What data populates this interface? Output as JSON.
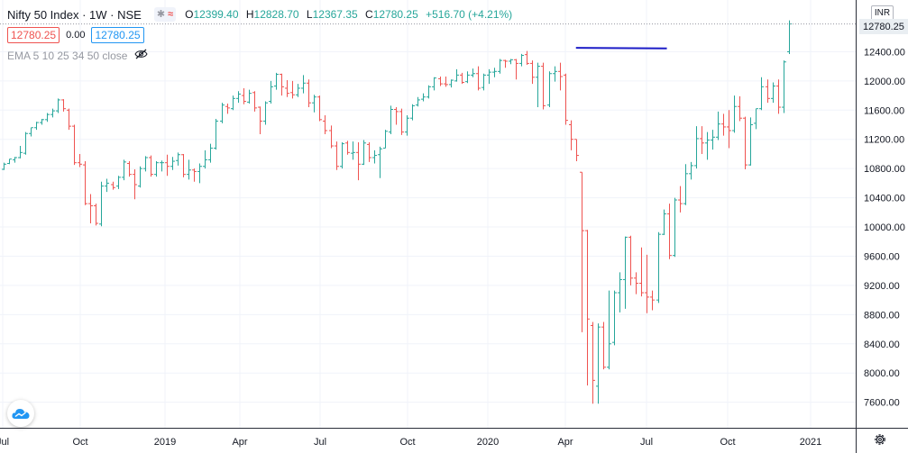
{
  "legend": {
    "symbol": "Nifty 50 Index · 1W · NSE",
    "open_label": "O",
    "open": "12399.40",
    "high_label": "H",
    "high": "12828.70",
    "low_label": "L",
    "low": "12367.35",
    "close_label": "C",
    "close": "12780.25",
    "change": "+516.70 (+4.21%)",
    "bid": "12780.25",
    "spread": "0.00",
    "ask": "12780.25",
    "indicator": "EMA 5 10 25 34 50 close"
  },
  "price_axis": {
    "currency": "INR",
    "last_price": "12780.25"
  },
  "colors": {
    "up": "#26a69a",
    "down": "#ef5350",
    "trendline": "#1c1cc7",
    "grid": "#f0f3fa",
    "axis_text": "#131722",
    "price_tag_bg": "#e9eef2",
    "last_price_line": "#9598a1"
  },
  "icons": {
    "visibility": "eye-crossed-icon",
    "logo": "cloud-logo-icon",
    "settings": "gear-icon"
  },
  "chart_data": {
    "type": "ohlc",
    "timeframe": "1W",
    "ylim": [
      7300,
      12960
    ],
    "y_ticks": [
      7600,
      8000,
      8400,
      8800,
      9200,
      9600,
      10000,
      10400,
      10800,
      11200,
      11600,
      12000,
      12400
    ],
    "y_tick_labels": [
      "7600.00",
      "8000.00",
      "8400.00",
      "8800.00",
      "9200.00",
      "9600.00",
      "10000.00",
      "10400.00",
      "10800.00",
      "11200.00",
      "11600.00",
      "12000.00",
      "12400.00"
    ],
    "x_labels": [
      "Jul",
      "Oct",
      "2019",
      "Apr",
      "Jul",
      "Oct",
      "2020",
      "Apr",
      "Jul",
      "Oct",
      "2021"
    ],
    "trendline": {
      "start": [
        105,
        12453
      ],
      "end": [
        121,
        12445
      ]
    },
    "last_price": 12780.25,
    "bars": [
      {
        "o": 10790,
        "h": 10880,
        "l": 10780,
        "c": 10860
      },
      {
        "o": 10870,
        "h": 10930,
        "l": 10860,
        "c": 10930
      },
      {
        "o": 10920,
        "h": 10960,
        "l": 10880,
        "c": 10950
      },
      {
        "o": 10950,
        "h": 11110,
        "l": 10940,
        "c": 11020
      },
      {
        "o": 11010,
        "h": 11300,
        "l": 10990,
        "c": 11280
      },
      {
        "o": 11280,
        "h": 11360,
        "l": 11240,
        "c": 11360
      },
      {
        "o": 11360,
        "h": 11440,
        "l": 11330,
        "c": 11430
      },
      {
        "o": 11430,
        "h": 11480,
        "l": 11400,
        "c": 11470
      },
      {
        "o": 11470,
        "h": 11560,
        "l": 11440,
        "c": 11540
      },
      {
        "o": 11540,
        "h": 11620,
        "l": 11500,
        "c": 11590
      },
      {
        "o": 11590,
        "h": 11760,
        "l": 11560,
        "c": 11740
      },
      {
        "o": 11740,
        "h": 11750,
        "l": 11580,
        "c": 11620
      },
      {
        "o": 11600,
        "h": 11620,
        "l": 11330,
        "c": 11380
      },
      {
        "o": 11380,
        "h": 11400,
        "l": 10850,
        "c": 10880
      },
      {
        "o": 10880,
        "h": 11000,
        "l": 10820,
        "c": 10860
      },
      {
        "o": 10850,
        "h": 10900,
        "l": 10300,
        "c": 10320
      },
      {
        "o": 10320,
        "h": 10450,
        "l": 10050,
        "c": 10290
      },
      {
        "o": 10290,
        "h": 10320,
        "l": 10020,
        "c": 10050
      },
      {
        "o": 10040,
        "h": 10620,
        "l": 10010,
        "c": 10560
      },
      {
        "o": 10560,
        "h": 10660,
        "l": 10480,
        "c": 10600
      },
      {
        "o": 10580,
        "h": 10620,
        "l": 10510,
        "c": 10540
      },
      {
        "o": 10560,
        "h": 10700,
        "l": 10520,
        "c": 10680
      },
      {
        "o": 10680,
        "h": 10920,
        "l": 10640,
        "c": 10890
      },
      {
        "o": 10870,
        "h": 10900,
        "l": 10690,
        "c": 10720
      },
      {
        "o": 10720,
        "h": 10790,
        "l": 10380,
        "c": 10580
      },
      {
        "o": 10560,
        "h": 10830,
        "l": 10540,
        "c": 10800
      },
      {
        "o": 10800,
        "h": 10970,
        "l": 10760,
        "c": 10950
      },
      {
        "o": 10950,
        "h": 10980,
        "l": 10690,
        "c": 10720
      },
      {
        "o": 10720,
        "h": 10900,
        "l": 10690,
        "c": 10880
      },
      {
        "o": 10880,
        "h": 10910,
        "l": 10760,
        "c": 10880
      },
      {
        "o": 10880,
        "h": 10990,
        "l": 10700,
        "c": 10830
      },
      {
        "o": 10830,
        "h": 10960,
        "l": 10780,
        "c": 10900
      },
      {
        "o": 10910,
        "h": 11020,
        "l": 10840,
        "c": 10990
      },
      {
        "o": 10990,
        "h": 11000,
        "l": 10680,
        "c": 10720
      },
      {
        "o": 10720,
        "h": 10920,
        "l": 10650,
        "c": 10780
      },
      {
        "o": 10780,
        "h": 10800,
        "l": 10620,
        "c": 10760
      },
      {
        "o": 10760,
        "h": 10870,
        "l": 10600,
        "c": 10830
      },
      {
        "o": 10830,
        "h": 11050,
        "l": 10800,
        "c": 10920
      },
      {
        "o": 10920,
        "h": 11140,
        "l": 10880,
        "c": 11080
      },
      {
        "o": 11080,
        "h": 11480,
        "l": 11060,
        "c": 11450
      },
      {
        "o": 11450,
        "h": 11700,
        "l": 11420,
        "c": 11670
      },
      {
        "o": 11650,
        "h": 11690,
        "l": 11550,
        "c": 11630
      },
      {
        "o": 11620,
        "h": 11800,
        "l": 11600,
        "c": 11760
      },
      {
        "o": 11760,
        "h": 11860,
        "l": 11700,
        "c": 11820
      },
      {
        "o": 11800,
        "h": 11900,
        "l": 11680,
        "c": 11720
      },
      {
        "o": 11710,
        "h": 11880,
        "l": 11690,
        "c": 11830
      },
      {
        "o": 11840,
        "h": 11860,
        "l": 11580,
        "c": 11630
      },
      {
        "o": 11640,
        "h": 11650,
        "l": 11270,
        "c": 11450
      },
      {
        "o": 11450,
        "h": 11720,
        "l": 11400,
        "c": 11700
      },
      {
        "o": 11720,
        "h": 12000,
        "l": 11690,
        "c": 11920
      },
      {
        "o": 11930,
        "h": 12110,
        "l": 11880,
        "c": 12090
      },
      {
        "o": 12090,
        "h": 12100,
        "l": 11800,
        "c": 11920
      },
      {
        "o": 11900,
        "h": 12010,
        "l": 11780,
        "c": 11830
      },
      {
        "o": 11840,
        "h": 12000,
        "l": 11760,
        "c": 11810
      },
      {
        "o": 11810,
        "h": 11960,
        "l": 11780,
        "c": 11900
      },
      {
        "o": 11900,
        "h": 12080,
        "l": 11830,
        "c": 11970
      },
      {
        "o": 11970,
        "h": 12020,
        "l": 11640,
        "c": 11700
      },
      {
        "o": 11700,
        "h": 11810,
        "l": 11570,
        "c": 11780
      },
      {
        "o": 11780,
        "h": 11800,
        "l": 11450,
        "c": 11470
      },
      {
        "o": 11450,
        "h": 11530,
        "l": 11270,
        "c": 11320
      },
      {
        "o": 11320,
        "h": 11390,
        "l": 11080,
        "c": 11110
      },
      {
        "o": 11110,
        "h": 11170,
        "l": 10780,
        "c": 10830
      },
      {
        "o": 10830,
        "h": 11160,
        "l": 10800,
        "c": 11140
      },
      {
        "o": 11150,
        "h": 11180,
        "l": 10990,
        "c": 11020
      },
      {
        "o": 11010,
        "h": 11170,
        "l": 10920,
        "c": 11020
      },
      {
        "o": 11020,
        "h": 11160,
        "l": 10640,
        "c": 10860
      },
      {
        "o": 10860,
        "h": 11190,
        "l": 10850,
        "c": 11150
      },
      {
        "o": 11130,
        "h": 11160,
        "l": 10890,
        "c": 10950
      },
      {
        "o": 10950,
        "h": 11050,
        "l": 10870,
        "c": 10980
      },
      {
        "o": 10990,
        "h": 11100,
        "l": 10670,
        "c": 11070
      },
      {
        "o": 11080,
        "h": 11330,
        "l": 11080,
        "c": 11310
      },
      {
        "o": 11300,
        "h": 11660,
        "l": 11270,
        "c": 11610
      },
      {
        "o": 11610,
        "h": 11640,
        "l": 11400,
        "c": 11580
      },
      {
        "o": 11580,
        "h": 11620,
        "l": 11260,
        "c": 11300
      },
      {
        "o": 11300,
        "h": 11530,
        "l": 11250,
        "c": 11490
      },
      {
        "o": 11490,
        "h": 11680,
        "l": 11460,
        "c": 11660
      },
      {
        "o": 11670,
        "h": 11780,
        "l": 11650,
        "c": 11740
      },
      {
        "o": 11750,
        "h": 11830,
        "l": 11720,
        "c": 11780
      },
      {
        "o": 11780,
        "h": 11940,
        "l": 11760,
        "c": 11920
      },
      {
        "o": 11920,
        "h": 12050,
        "l": 11870,
        "c": 12040
      },
      {
        "o": 12030,
        "h": 12060,
        "l": 11930,
        "c": 11960
      },
      {
        "o": 11960,
        "h": 12060,
        "l": 11920,
        "c": 11950
      },
      {
        "o": 11950,
        "h": 12020,
        "l": 11910,
        "c": 12010
      },
      {
        "o": 12000,
        "h": 12160,
        "l": 11990,
        "c": 12080
      },
      {
        "o": 12080,
        "h": 12110,
        "l": 11960,
        "c": 11980
      },
      {
        "o": 11990,
        "h": 12130,
        "l": 11970,
        "c": 12080
      },
      {
        "o": 12080,
        "h": 12170,
        "l": 12050,
        "c": 12100
      },
      {
        "o": 12100,
        "h": 12200,
        "l": 11870,
        "c": 11900
      },
      {
        "o": 11910,
        "h": 12100,
        "l": 11870,
        "c": 12080
      },
      {
        "o": 12080,
        "h": 12160,
        "l": 11960,
        "c": 12120
      },
      {
        "o": 12120,
        "h": 12180,
        "l": 12050,
        "c": 12130
      },
      {
        "o": 12130,
        "h": 12300,
        "l": 12100,
        "c": 12280
      },
      {
        "o": 12280,
        "h": 12290,
        "l": 12180,
        "c": 12270
      },
      {
        "o": 12270,
        "h": 12300,
        "l": 12230,
        "c": 12290
      },
      {
        "o": 12290,
        "h": 12300,
        "l": 12020,
        "c": 12240
      },
      {
        "o": 12240,
        "h": 12370,
        "l": 12200,
        "c": 12350
      },
      {
        "o": 12360,
        "h": 12410,
        "l": 12220,
        "c": 12240
      },
      {
        "o": 12240,
        "h": 12280,
        "l": 11960,
        "c": 12050
      },
      {
        "o": 12050,
        "h": 12250,
        "l": 11640,
        "c": 12200
      },
      {
        "o": 12200,
        "h": 12250,
        "l": 11610,
        "c": 11660
      },
      {
        "o": 11670,
        "h": 12130,
        "l": 11640,
        "c": 12100
      },
      {
        "o": 12100,
        "h": 12200,
        "l": 11990,
        "c": 12130
      },
      {
        "o": 12130,
        "h": 12250,
        "l": 11870,
        "c": 12060
      },
      {
        "o": 12080,
        "h": 12100,
        "l": 11400,
        "c": 11460
      },
      {
        "o": 11400,
        "h": 11460,
        "l": 11050,
        "c": 11200
      },
      {
        "o": 11200,
        "h": 11200,
        "l": 10900,
        "c": 10980
      },
      {
        "o": 10750,
        "h": 10750,
        "l": 8560,
        "c": 9950
      },
      {
        "o": 9950,
        "h": 9960,
        "l": 7830,
        "c": 8740
      },
      {
        "o": 8650,
        "h": 8700,
        "l": 7580,
        "c": 7900
      },
      {
        "o": 7820,
        "h": 8680,
        "l": 7580,
        "c": 8630
      },
      {
        "o": 8630,
        "h": 8700,
        "l": 8050,
        "c": 8080
      },
      {
        "o": 8080,
        "h": 9130,
        "l": 8050,
        "c": 8400
      },
      {
        "o": 8420,
        "h": 9130,
        "l": 8380,
        "c": 9100
      },
      {
        "o": 9100,
        "h": 9380,
        "l": 8830,
        "c": 9280
      },
      {
        "o": 9280,
        "h": 9870,
        "l": 8880,
        "c": 9860
      },
      {
        "o": 9860,
        "h": 9880,
        "l": 9200,
        "c": 9300
      },
      {
        "o": 9300,
        "h": 9380,
        "l": 9080,
        "c": 9230
      },
      {
        "o": 9230,
        "h": 9720,
        "l": 9050,
        "c": 9100
      },
      {
        "o": 9100,
        "h": 9620,
        "l": 8820,
        "c": 9040
      },
      {
        "o": 9040,
        "h": 9130,
        "l": 8860,
        "c": 9000
      },
      {
        "o": 9000,
        "h": 9930,
        "l": 8960,
        "c": 9900
      },
      {
        "o": 9900,
        "h": 10240,
        "l": 9890,
        "c": 10180
      },
      {
        "o": 10180,
        "h": 10320,
        "l": 9560,
        "c": 9610
      },
      {
        "o": 9610,
        "h": 10400,
        "l": 9590,
        "c": 10370
      },
      {
        "o": 10370,
        "h": 10560,
        "l": 10200,
        "c": 10320
      },
      {
        "o": 10320,
        "h": 10860,
        "l": 10300,
        "c": 10730
      },
      {
        "o": 10730,
        "h": 10890,
        "l": 10650,
        "c": 10840
      },
      {
        "o": 10840,
        "h": 11380,
        "l": 10800,
        "c": 11210
      },
      {
        "o": 11210,
        "h": 11380,
        "l": 11000,
        "c": 11150
      },
      {
        "o": 11150,
        "h": 11300,
        "l": 10920,
        "c": 11190
      },
      {
        "o": 11190,
        "h": 11330,
        "l": 11060,
        "c": 11230
      },
      {
        "o": 11230,
        "h": 11580,
        "l": 11190,
        "c": 11410
      },
      {
        "o": 11410,
        "h": 11550,
        "l": 11250,
        "c": 11370
      },
      {
        "o": 11370,
        "h": 11600,
        "l": 11080,
        "c": 11320
      },
      {
        "o": 11320,
        "h": 11800,
        "l": 11290,
        "c": 11650
      },
      {
        "o": 11650,
        "h": 11790,
        "l": 11450,
        "c": 11490
      },
      {
        "o": 11490,
        "h": 11510,
        "l": 10790,
        "c": 10850
      },
      {
        "o": 10850,
        "h": 11500,
        "l": 10840,
        "c": 11400
      },
      {
        "o": 11420,
        "h": 11620,
        "l": 11340,
        "c": 11620
      },
      {
        "o": 11620,
        "h": 12050,
        "l": 11600,
        "c": 11920
      },
      {
        "o": 11920,
        "h": 12020,
        "l": 11700,
        "c": 11760
      },
      {
        "o": 11760,
        "h": 11980,
        "l": 11700,
        "c": 11930
      },
      {
        "o": 11930,
        "h": 12020,
        "l": 11550,
        "c": 11640
      },
      {
        "o": 11640,
        "h": 12280,
        "l": 11560,
        "c": 12260
      },
      {
        "o": 12399.4,
        "h": 12828.7,
        "l": 12367.35,
        "c": 12780.25
      }
    ]
  }
}
